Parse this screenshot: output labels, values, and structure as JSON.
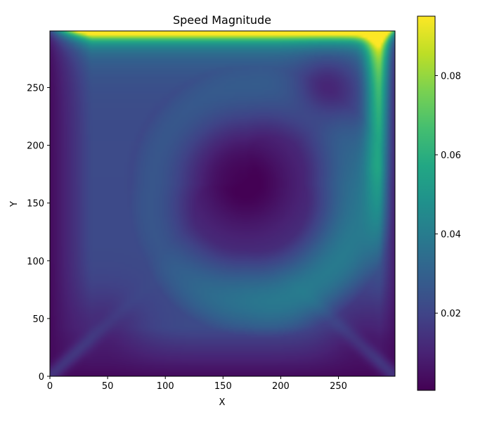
{
  "chart_data": {
    "type": "heatmap",
    "title": "Speed Magnitude",
    "xlabel": "X",
    "ylabel": "Y",
    "xlim": [
      0,
      299
    ],
    "ylim": [
      0,
      299
    ],
    "x_ticks": [
      0,
      50,
      100,
      150,
      200,
      250
    ],
    "y_ticks": [
      0,
      50,
      100,
      150,
      200,
      250
    ],
    "colormap": "viridis",
    "colorbar": {
      "range": [
        0.0005,
        0.095
      ],
      "ticks": [
        0.02,
        0.04,
        0.06,
        0.08
      ],
      "tick_labels": [
        "0.02",
        "0.04",
        "0.06",
        "0.08"
      ]
    },
    "field_features": {
      "lid_speed_top_row": 0.095,
      "primary_vortex_center": [
        170,
        167
      ],
      "ring_peak_speed": 0.042,
      "right_wall_jet_speed": 0.065,
      "secondary_vortex_top_right": [
        240,
        250
      ],
      "corner_eddies": [
        "bottom-left",
        "bottom-right"
      ]
    },
    "grid": false
  }
}
